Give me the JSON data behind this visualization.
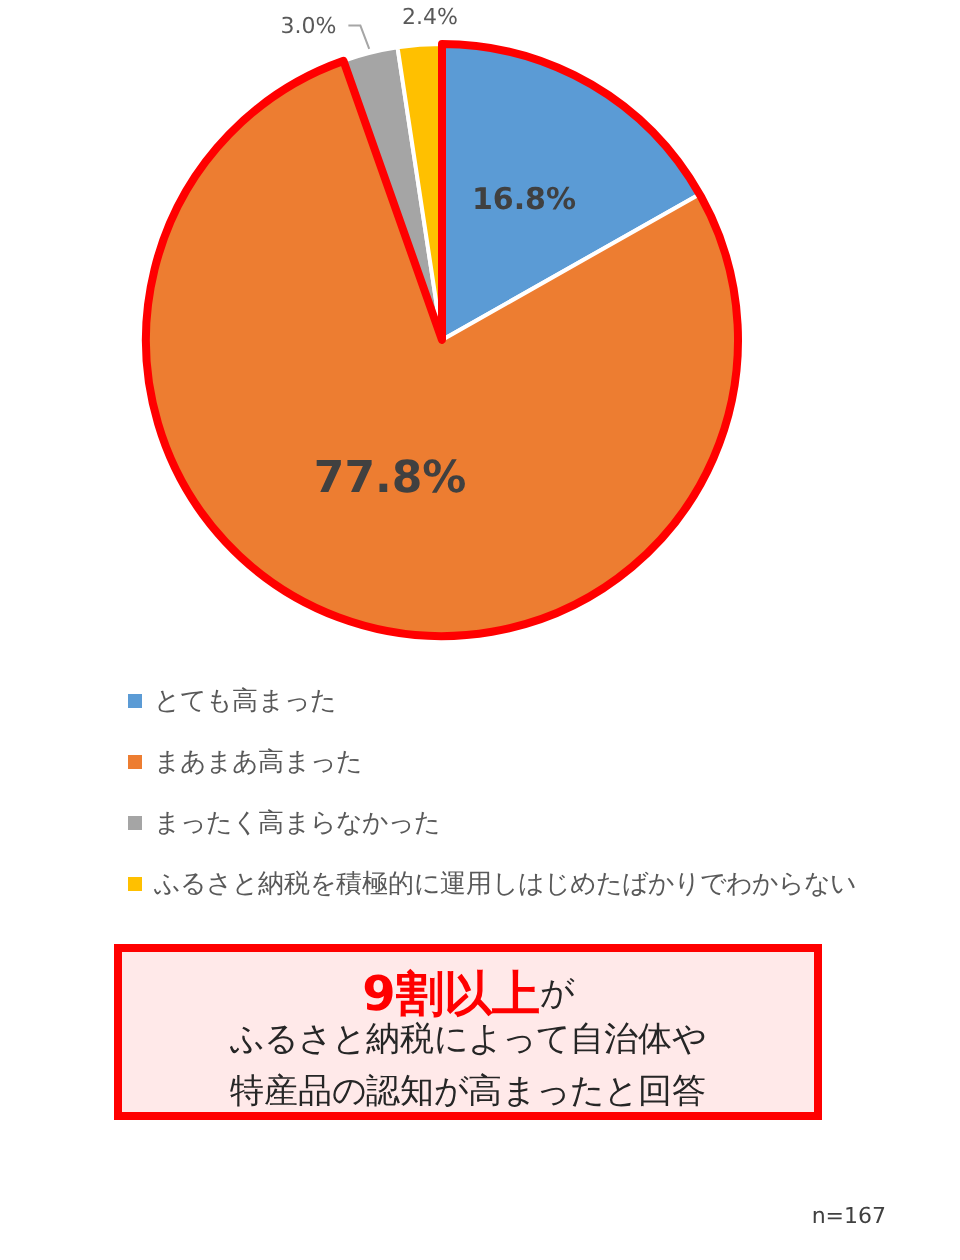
{
  "chart_data": {
    "type": "pie",
    "categories": [
      "とても高まった",
      "まあまあ高まった",
      "まったく高まらなかった",
      "ふるさと納税を積極的に運用しはじめたばかりでわからない"
    ],
    "values": [
      16.8,
      77.8,
      3.0,
      2.4
    ],
    "colors": [
      "#5b9bd5",
      "#ed7d31",
      "#a5a5a5",
      "#ffc000"
    ],
    "value_labels": [
      "16.8%",
      "77.8%",
      "3.0%",
      "2.4%"
    ],
    "legend": "bottom",
    "annotations": [
      "9割以上",
      "が",
      "ふるさと納税によって自治体や",
      "特産品の認知が高まったと回答",
      "n=167"
    ]
  }
}
